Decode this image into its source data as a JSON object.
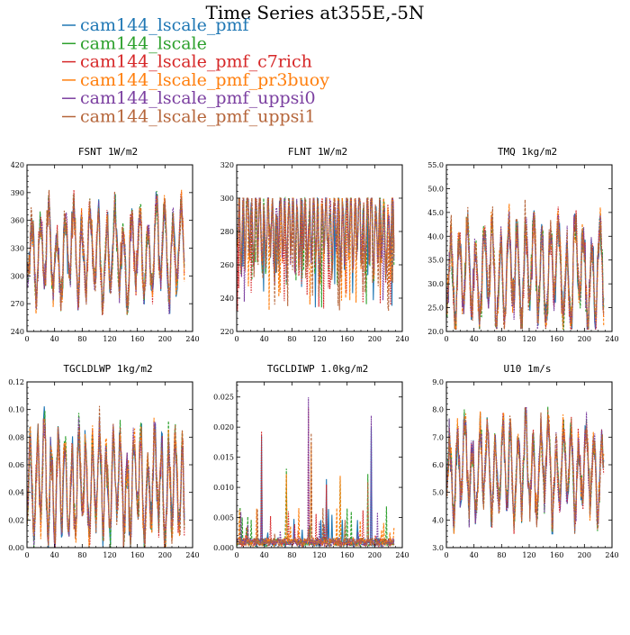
{
  "figure": {
    "title": "Time Series at355E,-5N"
  },
  "colors": {
    "cam144_lscale_pmf": "#1f77b4",
    "cam144_lscale": "#2ca02c",
    "cam144_lscale_pmf_c7rich": "#d62728",
    "cam144_lscale_pmf_pr3buoy": "#ff7f0e",
    "cam144_lscale_pmf_uppsi0": "#7b3fa0",
    "cam144_lscale_pmf_uppsi1": "#b5653a"
  },
  "legend": [
    "cam144_lscale_pmf",
    "cam144_lscale",
    "cam144_lscale_pmf_c7rich",
    "cam144_lscale_pmf_pr3buoy",
    "cam144_lscale_pmf_uppsi0",
    "cam144_lscale_pmf_uppsi1"
  ],
  "chart_data": [
    {
      "type": "line",
      "title": "FSNT   1W/m2",
      "xlim": [
        0,
        240
      ],
      "xticks": [
        "0",
        "40",
        "80",
        "120",
        "160",
        "200",
        "240"
      ],
      "ylim": [
        240,
        420
      ],
      "yticks": [
        "240",
        "270",
        "300",
        "330",
        "360",
        "390",
        "420"
      ],
      "series_names": [
        "cam144_lscale_pmf",
        "cam144_lscale",
        "cam144_lscale_pmf_c7rich",
        "cam144_lscale_pmf_pr3buoy",
        "cam144_lscale_pmf_uppsi0",
        "cam144_lscale_pmf_uppsi1"
      ],
      "x_range": [
        0,
        228
      ],
      "approx_range": [
        258,
        393
      ],
      "approx_mean": 325,
      "approx_period": 12
    },
    {
      "type": "line",
      "title": "FLNT   1W/m2",
      "xlim": [
        0,
        240
      ],
      "xticks": [
        "0",
        "40",
        "80",
        "120",
        "160",
        "200",
        "240"
      ],
      "ylim": [
        220,
        320
      ],
      "yticks": [
        "220",
        "240",
        "260",
        "280",
        "300",
        "320"
      ],
      "series_names": [
        "cam144_lscale_pmf",
        "cam144_lscale",
        "cam144_lscale_pmf_c7rich",
        "cam144_lscale_pmf_pr3buoy",
        "cam144_lscale_pmf_uppsi0",
        "cam144_lscale_pmf_uppsi1"
      ],
      "x_range": [
        0,
        228
      ],
      "approx_range": [
        232,
        300
      ],
      "approx_mean": 282,
      "approx_period": 6
    },
    {
      "type": "line",
      "title": "TMQ   1kg/m2",
      "xlim": [
        0,
        240
      ],
      "xticks": [
        "0",
        "40",
        "80",
        "120",
        "160",
        "200",
        "240"
      ],
      "ylim": [
        20.0,
        55.0
      ],
      "yticks": [
        "20.0",
        "25.0",
        "30.0",
        "35.0",
        "40.0",
        "45.0",
        "50.0",
        "55.0"
      ],
      "series_names": [
        "cam144_lscale_pmf",
        "cam144_lscale",
        "cam144_lscale_pmf_c7rich",
        "cam144_lscale_pmf_pr3buoy",
        "cam144_lscale_pmf_uppsi0",
        "cam144_lscale_pmf_uppsi1"
      ],
      "x_range": [
        0,
        228
      ],
      "approx_range": [
        20.5,
        50.3
      ],
      "approx_mean": 32,
      "approx_period": 12
    },
    {
      "type": "line",
      "title": "TGCLDLWP   1kg/m2",
      "xlim": [
        0,
        240
      ],
      "xticks": [
        "0",
        "40",
        "80",
        "120",
        "160",
        "200",
        "240"
      ],
      "ylim": [
        0.0,
        0.12
      ],
      "yticks": [
        "0.00",
        "0.02",
        "0.04",
        "0.06",
        "0.08",
        "0.10",
        "0.12"
      ],
      "series_names": [
        "cam144_lscale_pmf",
        "cam144_lscale",
        "cam144_lscale_pmf_c7rich",
        "cam144_lscale_pmf_pr3buoy",
        "cam144_lscale_pmf_uppsi0",
        "cam144_lscale_pmf_uppsi1"
      ],
      "x_range": [
        0,
        228
      ],
      "approx_range": [
        0.0,
        0.11
      ],
      "approx_mean": 0.045,
      "approx_period": 10
    },
    {
      "type": "line",
      "title": "TGCLDIWP   1.0kg/m2",
      "xlim": [
        0,
        240
      ],
      "xticks": [
        "0",
        "40",
        "80",
        "120",
        "160",
        "200",
        "240"
      ],
      "ylim": [
        0.0,
        0.0275
      ],
      "yticks": [
        "0.000",
        "0.005",
        "0.010",
        "0.015",
        "0.020",
        "0.025"
      ],
      "series_names": [
        "cam144_lscale_pmf",
        "cam144_lscale",
        "cam144_lscale_pmf_c7rich",
        "cam144_lscale_pmf_pr3buoy",
        "cam144_lscale_pmf_uppsi0",
        "cam144_lscale_pmf_uppsi1"
      ],
      "x_range": [
        0,
        228
      ],
      "approx_range": [
        0.0,
        0.0272
      ],
      "approx_mean": 0.0012,
      "spikes": [
        [
          36,
          0.02
        ],
        [
          72,
          0.014
        ],
        [
          104,
          0.027
        ],
        [
          108,
          0.02
        ],
        [
          195,
          0.022
        ],
        [
          190,
          0.0125
        ],
        [
          130,
          0.0115
        ],
        [
          150,
          0.012
        ]
      ]
    },
    {
      "type": "line",
      "title": "U10   1m/s",
      "xlim": [
        0,
        240
      ],
      "xticks": [
        "0",
        "40",
        "80",
        "120",
        "160",
        "200",
        "240"
      ],
      "ylim": [
        3.0,
        9.0
      ],
      "yticks": [
        "3.0",
        "4.0",
        "5.0",
        "6.0",
        "7.0",
        "8.0",
        "9.0"
      ],
      "series_names": [
        "cam144_lscale_pmf",
        "cam144_lscale",
        "cam144_lscale_pmf_c7rich",
        "cam144_lscale_pmf_pr3buoy",
        "cam144_lscale_pmf_uppsi0",
        "cam144_lscale_pmf_uppsi1"
      ],
      "x_range": [
        0,
        228
      ],
      "approx_range": [
        3.5,
        8.1
      ],
      "approx_mean": 5.8,
      "approx_period": 11
    }
  ]
}
